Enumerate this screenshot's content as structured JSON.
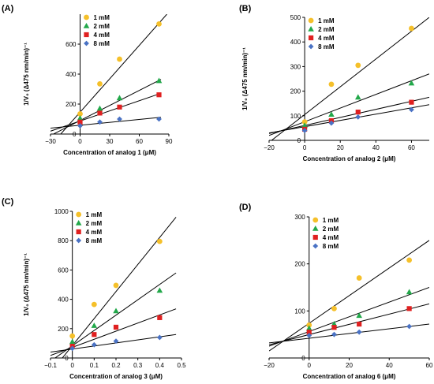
{
  "figure": {
    "marker_colors": {
      "1 mM": "#f5c02a",
      "2 mM": "#22a84a",
      "4 mM": "#e02020",
      "8 mM": "#4a72c4"
    },
    "line_color": "#000000"
  },
  "chart_data": [
    {
      "panel": "(A)",
      "type": "scatter",
      "xlabel": "Concentration of analog 1 (μM)",
      "ylabel": "1/V₀ (Δ475 nm/min)⁻¹",
      "xlim": [
        -30,
        90
      ],
      "ylim": [
        0,
        800
      ],
      "xticks": [
        -30,
        0,
        30,
        60,
        90
      ],
      "yticks": [
        0,
        200,
        400,
        600
      ],
      "tick_labels_x": [
        "−30",
        "0",
        "30",
        "60",
        "90"
      ],
      "tick_labels_y": [
        "0",
        "200",
        "400",
        "600"
      ],
      "legend": "top-left",
      "series": [
        {
          "name": "1 mM",
          "marker": "circle",
          "x": [
            0,
            20,
            40,
            80
          ],
          "y": [
            135,
            335,
            500,
            735
          ]
        },
        {
          "name": "2 mM",
          "marker": "triangle",
          "x": [
            0,
            20,
            40,
            80
          ],
          "y": [
            105,
            170,
            240,
            355
          ]
        },
        {
          "name": "4 mM",
          "marker": "square",
          "x": [
            0,
            20,
            40,
            80
          ],
          "y": [
            80,
            140,
            180,
            262
          ]
        },
        {
          "name": "8 mM",
          "marker": "diamond",
          "x": [
            0,
            20,
            40,
            80
          ],
          "y": [
            55,
            80,
            100,
            100
          ]
        }
      ],
      "fit_lines": [
        {
          "x": [
            -35,
            88
          ],
          "y": [
            -114,
            800
          ]
        },
        {
          "x": [
            -35,
            82
          ],
          "y": [
            -27,
            365
          ]
        },
        {
          "x": [
            -35,
            82
          ],
          "y": [
            8,
            272
          ]
        },
        {
          "x": [
            -35,
            82
          ],
          "y": [
            36,
            112
          ]
        }
      ]
    },
    {
      "panel": "(B)",
      "type": "scatter",
      "xlabel": "Concentration of analog 2 (μM)",
      "ylabel": "1/V₀ (Δ475 nm/min)⁻¹",
      "xlim": [
        -20,
        70
      ],
      "ylim": [
        0,
        500
      ],
      "xticks": [
        -20,
        0,
        20,
        40,
        60
      ],
      "yticks": [
        0,
        100,
        200,
        300,
        400,
        500
      ],
      "tick_labels_x": [
        "−20",
        "0",
        "20",
        "40",
        "60"
      ],
      "tick_labels_y": [
        "0",
        "100",
        "200",
        "300",
        "400",
        "500"
      ],
      "legend": "top-left",
      "series": [
        {
          "name": "1 mM",
          "marker": "circle",
          "x": [
            0,
            15,
            30,
            60
          ],
          "y": [
            75,
            228,
            305,
            455
          ]
        },
        {
          "name": "2 mM",
          "marker": "triangle",
          "x": [
            0,
            15,
            30,
            60
          ],
          "y": [
            60,
            105,
            175,
            232
          ]
        },
        {
          "name": "4 mM",
          "marker": "square",
          "x": [
            0,
            15,
            30,
            60
          ],
          "y": [
            45,
            80,
            115,
            155
          ]
        },
        {
          "name": "8 mM",
          "marker": "diamond",
          "x": [
            0,
            15,
            30,
            60
          ],
          "y": [
            40,
            70,
            95,
            125
          ]
        }
      ],
      "fit_lines": [
        {
          "x": [
            -20,
            70
          ],
          "y": [
            -8,
            500
          ]
        },
        {
          "x": [
            -20,
            70
          ],
          "y": [
            20,
            270
          ]
        },
        {
          "x": [
            -20,
            70
          ],
          "y": [
            28,
            175
          ]
        },
        {
          "x": [
            -20,
            70
          ],
          "y": [
            30,
            145
          ]
        }
      ]
    },
    {
      "panel": "(C)",
      "type": "scatter",
      "xlabel": "Concentration of analog 3 (μM)",
      "ylabel": "1/V₀ (Δ475 nm/min)⁻¹",
      "xlim": [
        -0.1,
        0.5
      ],
      "ylim": [
        0,
        1000
      ],
      "xticks": [
        -0.1,
        0,
        0.1,
        0.2,
        0.3,
        0.4,
        0.5
      ],
      "yticks": [
        0,
        200,
        400,
        600,
        800,
        1000
      ],
      "tick_labels_x": [
        "−0.1",
        "0",
        "0.1",
        "0.2",
        "0.3",
        "0.4",
        "0.5"
      ],
      "tick_labels_y": [
        "0",
        "200",
        "400",
        "600",
        "800",
        "1000"
      ],
      "legend": "top-left",
      "series": [
        {
          "name": "1 mM",
          "marker": "circle",
          "x": [
            0,
            0.1,
            0.2,
            0.4
          ],
          "y": [
            150,
            365,
            495,
            795
          ]
        },
        {
          "name": "2 mM",
          "marker": "triangle",
          "x": [
            0,
            0.1,
            0.2,
            0.4
          ],
          "y": [
            110,
            220,
            320,
            460
          ]
        },
        {
          "name": "4 mM",
          "marker": "square",
          "x": [
            0,
            0.1,
            0.2,
            0.4
          ],
          "y": [
            80,
            160,
            210,
            275
          ]
        },
        {
          "name": "8 mM",
          "marker": "diamond",
          "x": [
            0,
            0.1,
            0.2,
            0.4
          ],
          "y": [
            65,
            90,
            115,
            140
          ]
        }
      ],
      "fit_lines": [
        {
          "x": [
            -0.1,
            0.475
          ],
          "y": [
            -100,
            960
          ]
        },
        {
          "x": [
            -0.1,
            0.475
          ],
          "y": [
            -22,
            580
          ]
        },
        {
          "x": [
            -0.1,
            0.475
          ],
          "y": [
            17,
            335
          ]
        },
        {
          "x": [
            -0.1,
            0.475
          ],
          "y": [
            40,
            160
          ]
        }
      ]
    },
    {
      "panel": "(D)",
      "type": "scatter",
      "xlabel": "Concentration of analog 6 (μM)",
      "ylabel": "",
      "xlim": [
        -20,
        60
      ],
      "ylim": [
        0,
        300
      ],
      "xticks": [
        -20,
        0,
        20,
        40,
        60
      ],
      "yticks": [
        0,
        100,
        200,
        300
      ],
      "tick_labels_x": [
        "−20",
        "0",
        "20",
        "40",
        "60"
      ],
      "tick_labels_y": [
        "0",
        "100",
        "200",
        "300"
      ],
      "legend": "top-left",
      "series": [
        {
          "name": "1 mM",
          "marker": "circle",
          "x": [
            0,
            12.5,
            25,
            50
          ],
          "y": [
            70,
            105,
            170,
            208
          ]
        },
        {
          "name": "2 mM",
          "marker": "triangle",
          "x": [
            0,
            12.5,
            25,
            50
          ],
          "y": [
            63,
            72,
            90,
            140
          ]
        },
        {
          "name": "4 mM",
          "marker": "square",
          "x": [
            0,
            12.5,
            25,
            50
          ],
          "y": [
            55,
            65,
            72,
            105
          ]
        },
        {
          "name": "8 mM",
          "marker": "diamond",
          "x": [
            0,
            12.5,
            25,
            50
          ],
          "y": [
            48,
            50,
            55,
            67
          ]
        }
      ],
      "fit_lines": [
        {
          "x": [
            -20,
            60
          ],
          "y": [
            15,
            250
          ]
        },
        {
          "x": [
            -20,
            60
          ],
          "y": [
            25,
            150
          ]
        },
        {
          "x": [
            -20,
            60
          ],
          "y": [
            28,
            115
          ]
        },
        {
          "x": [
            -20,
            60
          ],
          "y": [
            32,
            72
          ]
        }
      ]
    }
  ]
}
